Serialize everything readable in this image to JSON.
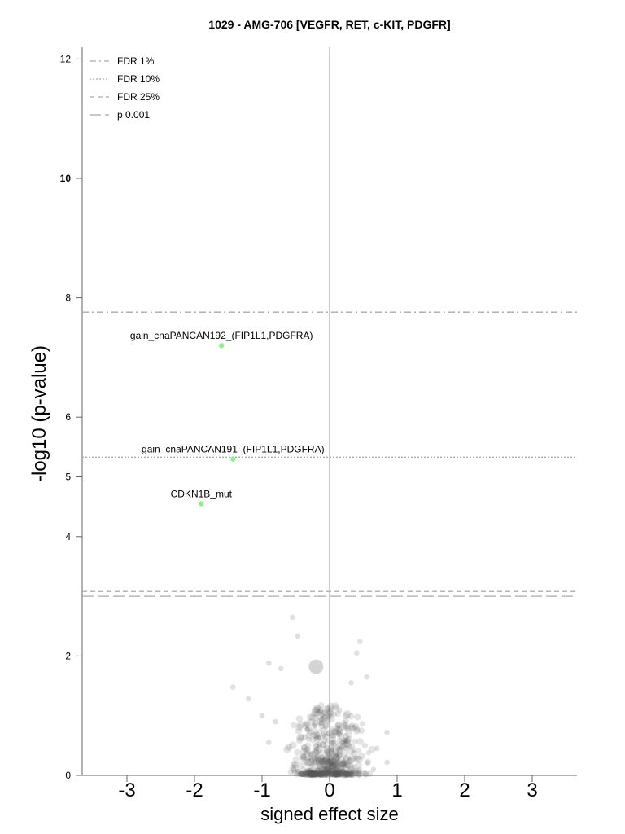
{
  "chart_data": {
    "type": "scatter",
    "title": "1029 - AMG-706 [VEGFR, RET, c-KIT, PDGFR]",
    "xlabel": "signed effect size",
    "ylabel": "-log10 (p-value)",
    "xlim": [
      -3.6,
      3.6
    ],
    "ylim": [
      0,
      12.2
    ],
    "xticks": [
      -3,
      -2,
      -1,
      0,
      1,
      2,
      3
    ],
    "yticks": [
      0,
      2,
      4,
      5,
      6,
      8,
      10,
      12
    ],
    "grid": false,
    "vertical_zero_line": true,
    "legend_position": "top-left",
    "thresholds": [
      {
        "label": "FDR 1%",
        "y": 7.76,
        "style": "dashdot"
      },
      {
        "label": "FDR 10%",
        "y": 5.33,
        "style": "dotted"
      },
      {
        "label": "FDR 25%",
        "y": 3.08,
        "style": "dashed"
      },
      {
        "label": "p 0.001",
        "y": 3.0,
        "style": "longdash"
      }
    ],
    "highlighted_points": [
      {
        "label": "gain_cnaPANCAN192_(FIP1L1,PDGFRA)",
        "x": -1.6,
        "y": 7.2,
        "color": "#90ee90"
      },
      {
        "label": "gain_cnaPANCAN191_(FIP1L1,PDGFRA)",
        "x": -1.43,
        "y": 5.3,
        "color": "#90ee90"
      },
      {
        "label": "CDKN1B_mut",
        "x": -1.9,
        "y": 4.55,
        "color": "#90ee90"
      }
    ],
    "background_points": [
      {
        "x": -0.55,
        "y": 2.65
      },
      {
        "x": -0.47,
        "y": 2.33
      },
      {
        "x": 0.45,
        "y": 2.24
      },
      {
        "x": 0.4,
        "y": 2.05
      },
      {
        "x": -0.2,
        "y": 1.82,
        "size": "large"
      },
      {
        "x": -0.9,
        "y": 1.88
      },
      {
        "x": -0.72,
        "y": 1.79
      },
      {
        "x": -1.43,
        "y": 1.48
      },
      {
        "x": -1.2,
        "y": 1.28
      },
      {
        "x": 0.32,
        "y": 1.55
      },
      {
        "x": 0.55,
        "y": 1.65
      },
      {
        "x": -0.18,
        "y": 1.08,
        "size": "medium"
      },
      {
        "x": -1.0,
        "y": 1.0
      },
      {
        "x": -0.8,
        "y": 0.9
      },
      {
        "x": 0.85,
        "y": 0.72
      },
      {
        "x": 0.7,
        "y": 0.45
      },
      {
        "x": 0.85,
        "y": 0.22
      },
      {
        "x": 0.65,
        "y": 0.1
      },
      {
        "x": -0.9,
        "y": 0.55
      }
    ],
    "cluster_note": "dense cluster of grey points near x=0, y=0–1.2",
    "colors": {
      "points": "#555555",
      "highlight": "#90ee90",
      "threshold": "#aaaaaa",
      "zero_line": "#cccccc"
    }
  }
}
